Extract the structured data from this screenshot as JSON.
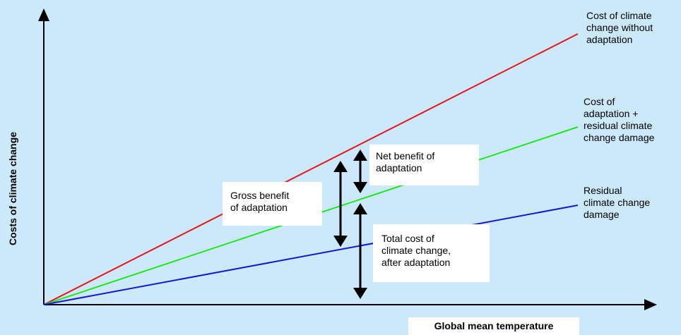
{
  "axes": {
    "x_label": "Global mean temperature",
    "y_label": "Costs of climate change"
  },
  "curves": [
    {
      "id": "without-adaptation",
      "label": "Cost of climate\nchange without\nadaptation",
      "color": "#e8141b"
    },
    {
      "id": "adaptation-plus-residual",
      "label": "Cost of\nadaptation +\nresidual climate\nchange damage",
      "color": "#1ee81e"
    },
    {
      "id": "residual-damage",
      "label": "Residual\nclimate change\ndamage",
      "color": "#1515d6"
    }
  ],
  "annotations": {
    "net_benefit": "Net benefit of\nadaptation",
    "gross_benefit": "Gross benefit\nof adaptation",
    "total_cost": "Total cost of\nclimate change,\nafter adaptation"
  },
  "arrow_color": "#000000"
}
